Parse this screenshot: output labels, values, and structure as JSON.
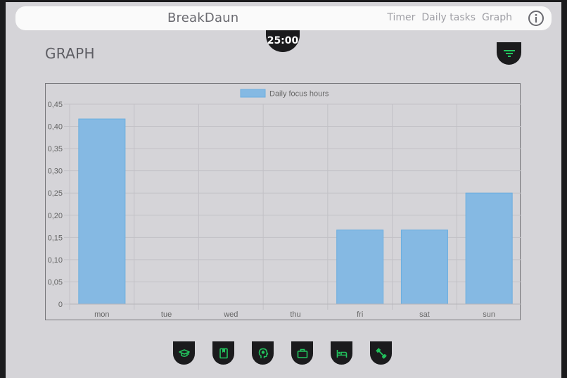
{
  "navbar": {
    "brand": "BreakDaun",
    "links": [
      {
        "label": "Timer"
      },
      {
        "label": "Daily tasks"
      },
      {
        "label": "Graph"
      }
    ],
    "info_icon": "info-icon"
  },
  "timer": {
    "value": "25:00"
  },
  "page": {
    "title": "GRAPH",
    "filter_icon": "filter-icon"
  },
  "colors": {
    "accent_green": "#22c55e",
    "bar_fill": "#85b9e3",
    "bar_border": "#6aaee0",
    "dark": "#1b1b1d",
    "background": "#d5d4d8"
  },
  "chart_data": {
    "type": "bar",
    "title": "",
    "legend": [
      "Daily focus hours"
    ],
    "legend_position": "top",
    "categories": [
      "mon",
      "tue",
      "wed",
      "thu",
      "fri",
      "sat",
      "sun"
    ],
    "series": [
      {
        "name": "Daily focus hours",
        "values": [
          0.4167,
          0,
          0,
          0,
          0.1667,
          0.1667,
          0.25
        ]
      }
    ],
    "xlabel": "",
    "ylabel": "",
    "ylim": [
      0,
      0.45
    ],
    "yticks": [
      "0",
      "0,05",
      "0,10",
      "0,15",
      "0,20",
      "0,25",
      "0,30",
      "0,35",
      "0,40",
      "0,45"
    ],
    "grid": true
  },
  "bottom_icons": [
    {
      "name": "graduation-cap-icon"
    },
    {
      "name": "book-icon"
    },
    {
      "name": "brain-head-icon"
    },
    {
      "name": "briefcase-icon"
    },
    {
      "name": "bed-icon"
    },
    {
      "name": "dumbbell-icon"
    }
  ]
}
